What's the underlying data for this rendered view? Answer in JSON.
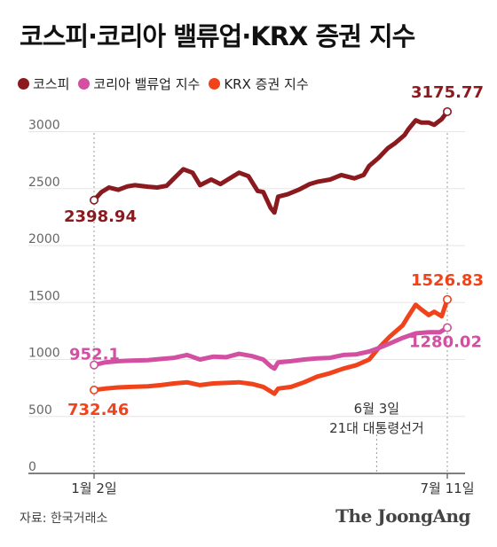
{
  "title": "코스피·코리아 밸류업·KRX 증권 지수",
  "source": "자료: 한국거래소",
  "logo": "The JoongAng",
  "colors": {
    "kospi": "#8b1a1f",
    "valueup": "#d24fa1",
    "krx": "#f0431c",
    "grid": "#e6e6e6",
    "axis": "#555555",
    "guide": "#999999"
  },
  "chart_data": {
    "type": "line",
    "title": "코스피·코리아 밸류업·KRX 증권 지수",
    "ylim": [
      0,
      3300
    ],
    "yticks": [
      0,
      500,
      1000,
      1500,
      2000,
      2500,
      3000
    ],
    "xlim": [
      "2025-01-02",
      "2025-07-11"
    ],
    "xtick_labels": [
      {
        "x": "2025-01-02",
        "label": "1월 2일"
      },
      {
        "x": "2025-07-11",
        "label": "7월 11일"
      }
    ],
    "annotations": [
      {
        "x": "2025-06-03",
        "text": [
          "6월 3일",
          "21대 대통령선거"
        ]
      }
    ],
    "grid": true,
    "legend": "top-left",
    "series": [
      {
        "name": "코스피",
        "color_key": "kospi",
        "start_label": "2398.94",
        "end_label": "3175.77",
        "points": [
          [
            "2025-01-02",
            2398.94
          ],
          [
            "2025-01-06",
            2470
          ],
          [
            "2025-01-10",
            2510
          ],
          [
            "2025-01-15",
            2490
          ],
          [
            "2025-01-20",
            2520
          ],
          [
            "2025-01-24",
            2530
          ],
          [
            "2025-01-31",
            2517
          ],
          [
            "2025-02-05",
            2510
          ],
          [
            "2025-02-10",
            2525
          ],
          [
            "2025-02-14",
            2590
          ],
          [
            "2025-02-19",
            2670
          ],
          [
            "2025-02-24",
            2640
          ],
          [
            "2025-02-28",
            2530
          ],
          [
            "2025-03-06",
            2580
          ],
          [
            "2025-03-11",
            2540
          ],
          [
            "2025-03-17",
            2600
          ],
          [
            "2025-03-21",
            2640
          ],
          [
            "2025-03-26",
            2610
          ],
          [
            "2025-03-31",
            2480
          ],
          [
            "2025-04-03",
            2470
          ],
          [
            "2025-04-07",
            2330
          ],
          [
            "2025-04-09",
            2290
          ],
          [
            "2025-04-11",
            2430
          ],
          [
            "2025-04-16",
            2450
          ],
          [
            "2025-04-22",
            2490
          ],
          [
            "2025-04-28",
            2540
          ],
          [
            "2025-05-02",
            2560
          ],
          [
            "2025-05-09",
            2580
          ],
          [
            "2025-05-15",
            2620
          ],
          [
            "2025-05-22",
            2590
          ],
          [
            "2025-05-27",
            2620
          ],
          [
            "2025-05-30",
            2700
          ],
          [
            "2025-06-04",
            2770
          ],
          [
            "2025-06-09",
            2855
          ],
          [
            "2025-06-13",
            2900
          ],
          [
            "2025-06-18",
            2970
          ],
          [
            "2025-06-20",
            3020
          ],
          [
            "2025-06-24",
            3100
          ],
          [
            "2025-06-27",
            3080
          ],
          [
            "2025-07-01",
            3080
          ],
          [
            "2025-07-04",
            3060
          ],
          [
            "2025-07-08",
            3110
          ],
          [
            "2025-07-11",
            3175.77
          ]
        ]
      },
      {
        "name": "코리아 밸류업 지수",
        "color_key": "valueup",
        "start_label": "952.1",
        "end_label": "1280.02",
        "points": [
          [
            "2025-01-02",
            952.1
          ],
          [
            "2025-01-08",
            975
          ],
          [
            "2025-01-15",
            985
          ],
          [
            "2025-01-22",
            990
          ],
          [
            "2025-01-31",
            995
          ],
          [
            "2025-02-07",
            1005
          ],
          [
            "2025-02-14",
            1015
          ],
          [
            "2025-02-21",
            1040
          ],
          [
            "2025-02-28",
            1000
          ],
          [
            "2025-03-07",
            1025
          ],
          [
            "2025-03-14",
            1020
          ],
          [
            "2025-03-21",
            1050
          ],
          [
            "2025-03-28",
            1030
          ],
          [
            "2025-04-03",
            1000
          ],
          [
            "2025-04-07",
            940
          ],
          [
            "2025-04-09",
            920
          ],
          [
            "2025-04-11",
            975
          ],
          [
            "2025-04-18",
            985
          ],
          [
            "2025-04-25",
            1000
          ],
          [
            "2025-05-02",
            1010
          ],
          [
            "2025-05-09",
            1015
          ],
          [
            "2025-05-16",
            1040
          ],
          [
            "2025-05-23",
            1045
          ],
          [
            "2025-05-30",
            1070
          ],
          [
            "2025-06-04",
            1100
          ],
          [
            "2025-06-10",
            1140
          ],
          [
            "2025-06-17",
            1190
          ],
          [
            "2025-06-24",
            1230
          ],
          [
            "2025-07-01",
            1240
          ],
          [
            "2025-07-07",
            1240
          ],
          [
            "2025-07-11",
            1280.02
          ]
        ]
      },
      {
        "name": "KRX 증권 지수",
        "color_key": "krx",
        "start_label": "732.46",
        "end_label": "1526.83",
        "points": [
          [
            "2025-01-02",
            732.46
          ],
          [
            "2025-01-08",
            745
          ],
          [
            "2025-01-15",
            755
          ],
          [
            "2025-01-22",
            760
          ],
          [
            "2025-01-31",
            765
          ],
          [
            "2025-02-07",
            775
          ],
          [
            "2025-02-14",
            790
          ],
          [
            "2025-02-21",
            800
          ],
          [
            "2025-02-28",
            775
          ],
          [
            "2025-03-07",
            790
          ],
          [
            "2025-03-14",
            795
          ],
          [
            "2025-03-21",
            800
          ],
          [
            "2025-03-28",
            785
          ],
          [
            "2025-04-03",
            760
          ],
          [
            "2025-04-07",
            720
          ],
          [
            "2025-04-09",
            700
          ],
          [
            "2025-04-11",
            745
          ],
          [
            "2025-04-18",
            760
          ],
          [
            "2025-04-25",
            800
          ],
          [
            "2025-05-02",
            850
          ],
          [
            "2025-05-09",
            880
          ],
          [
            "2025-05-16",
            920
          ],
          [
            "2025-05-23",
            950
          ],
          [
            "2025-05-30",
            1000
          ],
          [
            "2025-06-04",
            1100
          ],
          [
            "2025-06-10",
            1200
          ],
          [
            "2025-06-17",
            1300
          ],
          [
            "2025-06-20",
            1380
          ],
          [
            "2025-06-24",
            1480
          ],
          [
            "2025-06-27",
            1440
          ],
          [
            "2025-07-01",
            1390
          ],
          [
            "2025-07-04",
            1420
          ],
          [
            "2025-07-08",
            1380
          ],
          [
            "2025-07-11",
            1526.83
          ]
        ]
      }
    ]
  }
}
